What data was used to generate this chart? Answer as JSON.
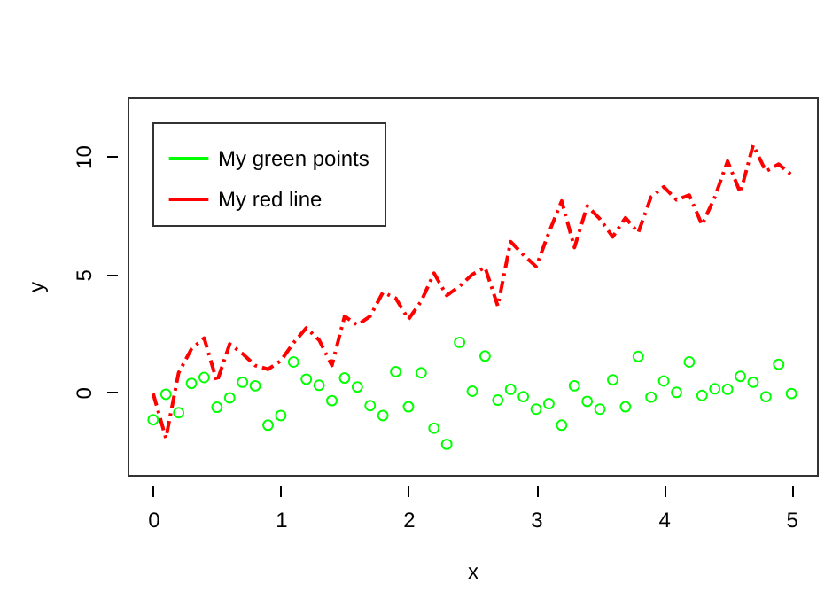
{
  "chart_data": {
    "type": "scatter",
    "xlabel": "x",
    "ylabel": "y",
    "x": [
      0,
      0.1,
      0.2,
      0.3,
      0.4,
      0.5,
      0.6,
      0.7,
      0.8,
      0.9,
      1,
      1.1,
      1.2,
      1.3,
      1.4,
      1.5,
      1.6,
      1.7,
      1.8,
      1.9,
      2,
      2.1,
      2.2,
      2.3,
      2.4,
      2.5,
      2.6,
      2.7,
      2.8,
      2.9,
      3,
      3.1,
      3.2,
      3.3,
      3.4,
      3.5,
      3.6,
      3.7,
      3.8,
      3.9,
      4,
      4.1,
      4.2,
      4.3,
      4.4,
      4.5,
      4.6,
      4.7,
      4.8,
      4.9,
      5
    ],
    "series": [
      {
        "name": "My green points",
        "color": "#00ff00",
        "marker": "circle",
        "values": [
          -1.16,
          -0.08,
          -0.86,
          0.38,
          0.63,
          -0.63,
          -0.23,
          0.43,
          0.28,
          -1.39,
          -0.98,
          1.29,
          0.56,
          0.3,
          -0.35,
          0.61,
          0.23,
          -0.56,
          -0.98,
          0.88,
          -0.61,
          0.83,
          -1.52,
          -2.2,
          2.12,
          0.05,
          1.54,
          -0.33,
          0.13,
          -0.18,
          -0.71,
          -0.48,
          -1.39,
          0.28,
          -0.38,
          -0.71,
          0.53,
          -0.61,
          1.52,
          -0.2,
          0.48,
          0,
          1.29,
          -0.13,
          0.15,
          0.13,
          0.68,
          0.43,
          -0.18,
          1.19,
          -0.05
        ]
      },
      {
        "name": "My red line",
        "color": "#ff0000",
        "type": "line",
        "line_style": "dashed",
        "values": [
          -0.05,
          -1.94,
          0.83,
          1.84,
          2.3,
          0.45,
          2.05,
          1.64,
          1.14,
          0.98,
          1.34,
          2.1,
          2.73,
          2.22,
          1.14,
          3.23,
          2.85,
          3.23,
          4.24,
          3.99,
          3.1,
          3.86,
          5.05,
          4.11,
          4.5,
          5.0,
          5.3,
          3.66,
          6.39,
          5.83,
          5.33,
          6.77,
          8.11,
          6.14,
          7.9,
          7.35,
          6.59,
          7.4,
          6.77,
          8.28,
          8.71,
          8.16,
          8.36,
          7.1,
          8.28,
          9.8,
          8.46,
          10.48,
          9.37,
          9.67,
          9.22
        ]
      }
    ],
    "xlim": [
      -0.2,
      5.2
    ],
    "ylim": [
      -3.5,
      12.5
    ],
    "xticks": [
      0,
      1,
      2,
      3,
      4,
      5
    ],
    "yticks": [
      0,
      5,
      10
    ],
    "legend": "top left",
    "grid": false
  }
}
